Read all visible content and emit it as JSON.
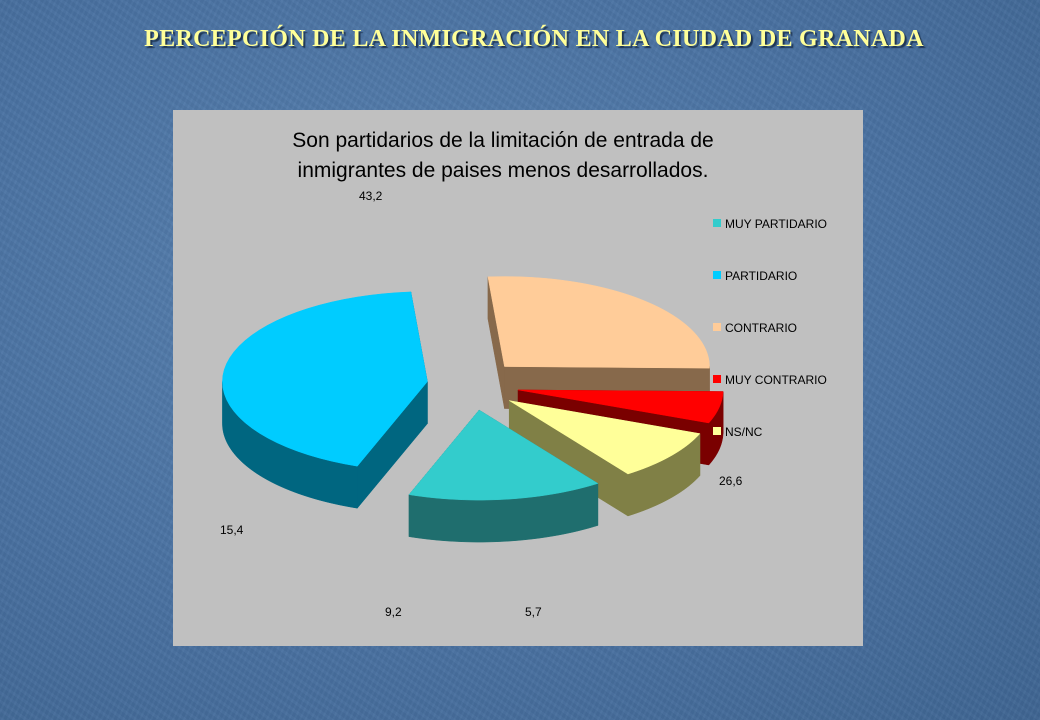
{
  "slide": {
    "title": "PERCEPCIÓN DE LA INMIGRACIÓN EN LA CIUDAD DE GRANADA"
  },
  "chart_data": {
    "type": "pie",
    "title_lines": [
      "Son partidarios de la limitación de entrada de",
      "inmigrantes de paises menos desarrollados."
    ],
    "categories": [
      "MUY PARTIDARIO",
      "PARTIDARIO",
      "CONTRARIO",
      "MUY CONTRARIO",
      "NS/NC"
    ],
    "values": [
      15.4,
      43.2,
      26.6,
      5.7,
      9.2
    ],
    "value_labels": [
      "15,4",
      "43,2",
      "26,6",
      "5,7",
      "9,2"
    ],
    "colors": [
      "#33cccc",
      "#00ccff",
      "#ffcc99",
      "#ff0000",
      "#ffff99"
    ],
    "side_colors": [
      "#1f6e6e",
      "#006680",
      "#87694b",
      "#7a0000",
      "#808046"
    ],
    "legend_position": "right",
    "style": "3d-exploded"
  }
}
